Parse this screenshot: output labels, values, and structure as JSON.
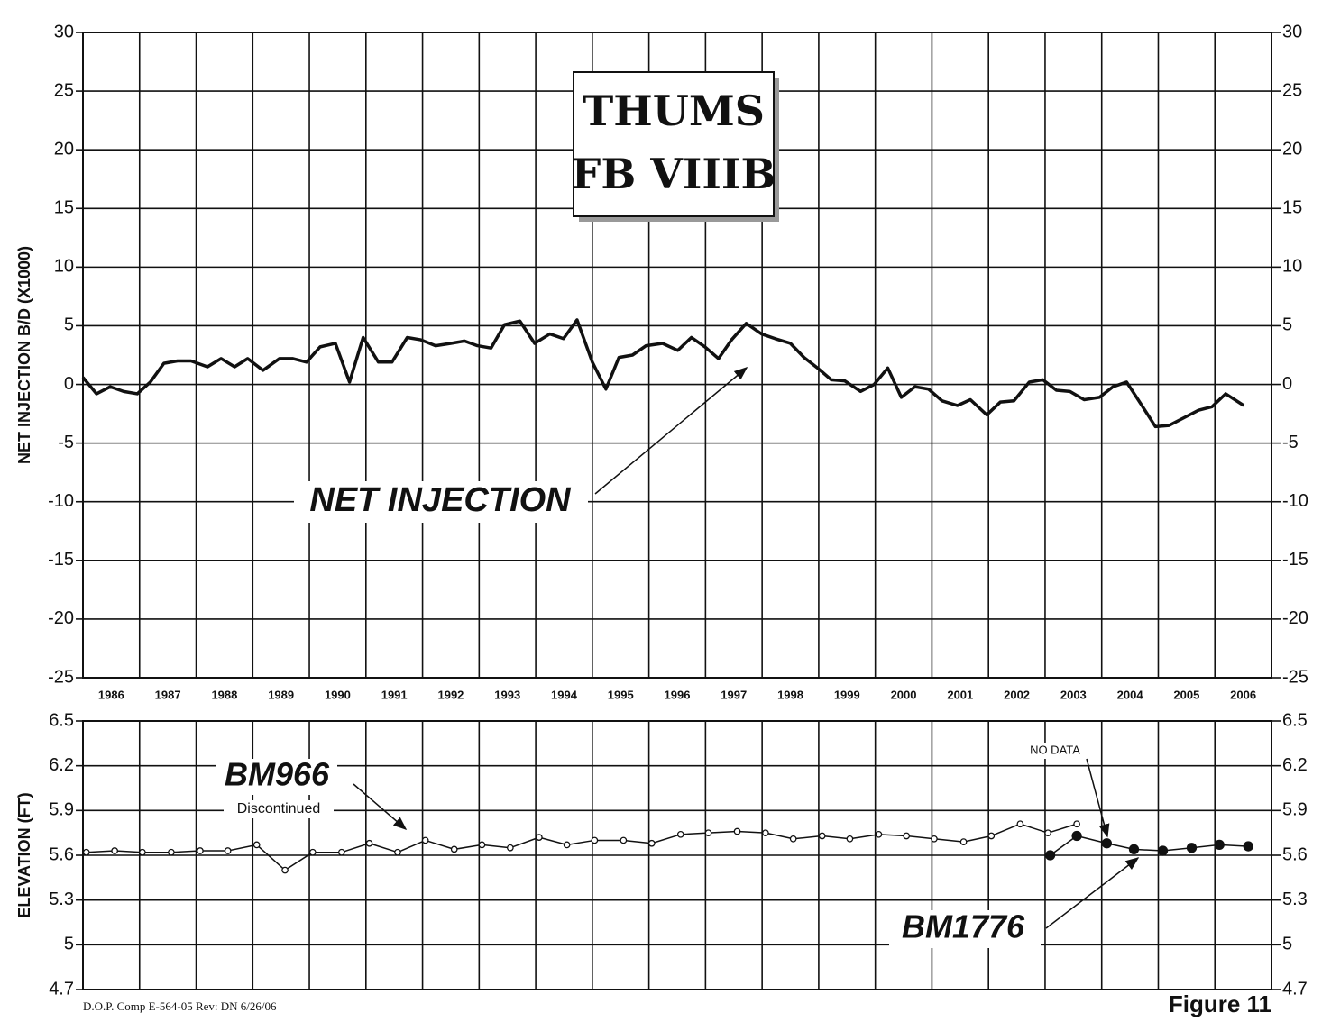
{
  "chart_data": [
    {
      "type": "line",
      "title": [
        "THUMS",
        "FB VIIIB"
      ],
      "ylabel": "NET INJECTION B/D (X1000)",
      "annotations": [
        "NET INJECTION"
      ],
      "xlim": [
        1986,
        2007
      ],
      "xticks": [
        {
          "value": 1986,
          "label": "1986"
        },
        {
          "value": 1987,
          "label": "1987"
        },
        {
          "value": 1988,
          "label": "1988"
        },
        {
          "value": 1989,
          "label": "1989"
        },
        {
          "value": 1990,
          "label": "1990"
        },
        {
          "value": 1991,
          "label": "1991"
        },
        {
          "value": 1992,
          "label": "1992"
        },
        {
          "value": 1993,
          "label": "1993"
        },
        {
          "value": 1994,
          "label": "1994"
        },
        {
          "value": 1995,
          "label": "1995"
        },
        {
          "value": 1996,
          "label": "1996"
        },
        {
          "value": 1997,
          "label": "1997"
        },
        {
          "value": 1998,
          "label": "1998"
        },
        {
          "value": 1999,
          "label": "1999"
        },
        {
          "value": 2000,
          "label": "2000"
        },
        {
          "value": 2001,
          "label": "2001"
        },
        {
          "value": 2002,
          "label": "2002"
        },
        {
          "value": 2003,
          "label": "2003"
        },
        {
          "value": 2004,
          "label": "2004"
        },
        {
          "value": 2005,
          "label": "2005"
        },
        {
          "value": 2006,
          "label": "2006"
        }
      ],
      "ylim": [
        -25,
        30
      ],
      "yticks": [
        -25,
        -20,
        -15,
        -10,
        -5,
        0,
        5,
        10,
        15,
        20,
        25,
        30
      ],
      "y2lim": [
        -25,
        30
      ],
      "y2ticks": [
        -25,
        -20,
        -15,
        -10,
        -5,
        0,
        5,
        10,
        15,
        20,
        25,
        30
      ],
      "grid": true,
      "series": [
        {
          "color": "#111111",
          "marker": "none",
          "x": [
            1986.0,
            1986.24,
            1986.48,
            1986.72,
            1986.96,
            1987.19,
            1987.43,
            1987.67,
            1987.91,
            1988.2,
            1988.44,
            1988.68,
            1988.91,
            1989.18,
            1989.47,
            1989.71,
            1989.95,
            1990.19,
            1990.46,
            1990.71,
            1990.95,
            1991.22,
            1991.46,
            1991.73,
            1991.97,
            1992.23,
            1992.5,
            1992.74,
            1992.97,
            1993.21,
            1993.45,
            1993.72,
            1993.98,
            1994.25,
            1994.49,
            1994.73,
            1995.0,
            1995.24,
            1995.47,
            1995.71,
            1995.95,
            1996.24,
            1996.51,
            1996.75,
            1996.99,
            1997.23,
            1997.46,
            1997.72,
            1997.99,
            1998.23,
            1998.5,
            1998.74,
            1998.98,
            1999.22,
            1999.46,
            1999.74,
            1999.98,
            2000.22,
            2000.46,
            2000.7,
            2000.94,
            2001.18,
            2001.45,
            2001.68,
            2001.97,
            2002.21,
            2002.45,
            2002.72,
            2002.96,
            2003.2,
            2003.44,
            2003.69,
            2003.96,
            2004.2,
            2004.44,
            2004.71,
            2004.95,
            2005.19,
            2005.47,
            2005.71,
            2005.95,
            2006.19,
            2006.51
          ],
          "values": [
            0.6,
            -0.8,
            -0.2,
            -0.6,
            -0.8,
            0.2,
            1.8,
            2.0,
            2.0,
            1.5,
            2.2,
            1.5,
            2.2,
            1.2,
            2.2,
            2.2,
            1.9,
            3.2,
            3.5,
            0.2,
            4.0,
            1.9,
            1.9,
            4.0,
            3.8,
            3.3,
            3.5,
            3.7,
            3.3,
            3.1,
            5.1,
            5.4,
            3.5,
            4.3,
            3.9,
            5.5,
            1.9,
            -0.4,
            2.3,
            2.5,
            3.3,
            3.5,
            2.9,
            4.0,
            3.2,
            2.2,
            3.8,
            5.2,
            4.3,
            3.9,
            3.5,
            2.3,
            1.4,
            0.4,
            0.3,
            -0.6,
            0,
            1.4,
            -1.1,
            -0.2,
            -0.4,
            -1.4,
            -1.8,
            -1.3,
            -2.6,
            -1.5,
            -1.4,
            0.2,
            0.4,
            -0.5,
            -0.6,
            -1.3,
            -1.1,
            -0.2,
            0.2,
            -1.8,
            -3.6,
            -3.5,
            -2.8,
            -2.2,
            -1.9,
            -0.8,
            -1.8
          ]
        }
      ]
    },
    {
      "type": "line",
      "ylabel": "ELEVATION (FT)",
      "annotations": [
        "BM966",
        "Discontinued",
        "NO DATA",
        "BM1776"
      ],
      "xlim": [
        1986,
        2007
      ],
      "ylim": [
        4.7,
        6.5
      ],
      "yticks": [
        4.7,
        5,
        5.3,
        5.6,
        5.9,
        6.2,
        6.5
      ],
      "y2lim": [
        4.7,
        6.5
      ],
      "y2ticks": [
        4.7,
        5,
        5.3,
        5.6,
        5.9,
        6.2,
        6.5
      ],
      "grid": true,
      "series": [
        {
          "name": "BM966",
          "color": "#111111",
          "marker": "open",
          "x": [
            1986.06,
            1986.56,
            1987.05,
            1987.56,
            1988.07,
            1988.56,
            1989.07,
            1989.57,
            1990.06,
            1990.57,
            1991.06,
            1991.56,
            1992.05,
            1992.56,
            1993.05,
            1993.55,
            1994.06,
            1994.55,
            1995.04,
            1995.55,
            1996.05,
            1996.56,
            1997.05,
            1997.56,
            1998.06,
            1998.55,
            1999.06,
            1999.55,
            2000.06,
            2000.55,
            2001.04,
            2001.56,
            2002.05,
            2002.56,
            2003.05,
            2003.56
          ],
          "values": [
            5.62,
            5.63,
            5.62,
            5.62,
            5.63,
            5.63,
            5.67,
            5.5,
            5.62,
            5.62,
            5.68,
            5.62,
            5.7,
            5.64,
            5.67,
            5.65,
            5.72,
            5.67,
            5.7,
            5.7,
            5.68,
            5.74,
            5.75,
            5.76,
            5.75,
            5.71,
            5.73,
            5.71,
            5.74,
            5.73,
            5.71,
            5.69,
            5.73,
            5.81,
            5.75,
            5.81
          ]
        },
        {
          "name": "BM1776",
          "color": "#111111",
          "marker": "filled",
          "x": [
            2003.09,
            2003.56,
            2004.09,
            2004.57,
            2005.08,
            2005.59,
            2006.08,
            2006.59
          ],
          "values": [
            5.6,
            5.73,
            5.68,
            5.64,
            5.63,
            5.65,
            5.67,
            5.66
          ]
        }
      ]
    }
  ],
  "footer": {
    "left": "D.O.P. Comp E-564-05  Rev: DN 6/26/06",
    "right": "Figure 11"
  }
}
